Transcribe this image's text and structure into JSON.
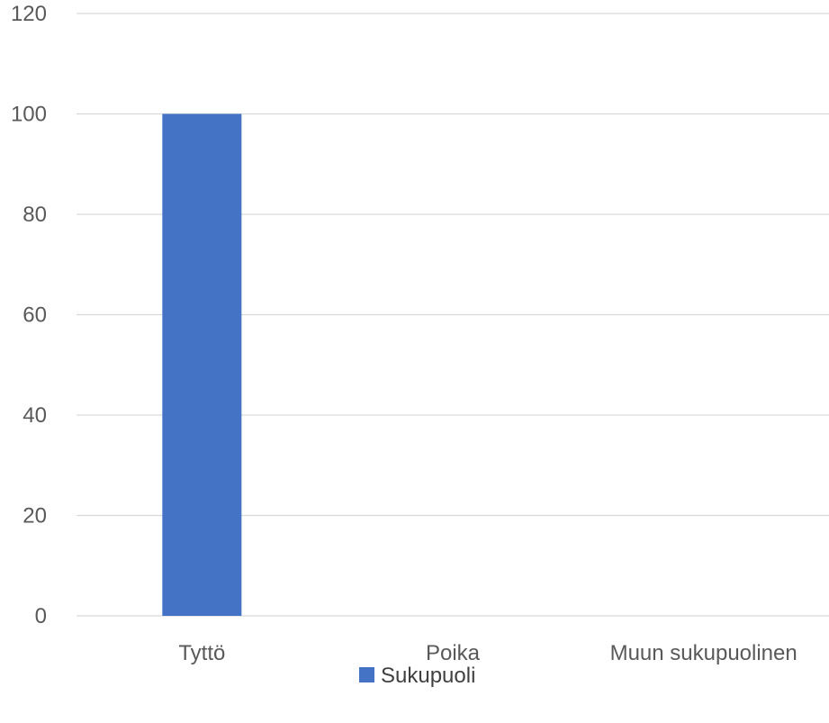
{
  "chart_data": {
    "type": "bar",
    "categories": [
      "Tyttö",
      "Poika",
      "Muun sukupuolinen"
    ],
    "series": [
      {
        "name": "Sukupuoli",
        "values": [
          100,
          0,
          0
        ],
        "color": "#4472c4"
      }
    ],
    "ylim": [
      0,
      120
    ],
    "yticks": [
      "0",
      "20",
      "40",
      "60",
      "80",
      "100",
      "120"
    ],
    "grid": true,
    "legend_position": "bottom"
  }
}
